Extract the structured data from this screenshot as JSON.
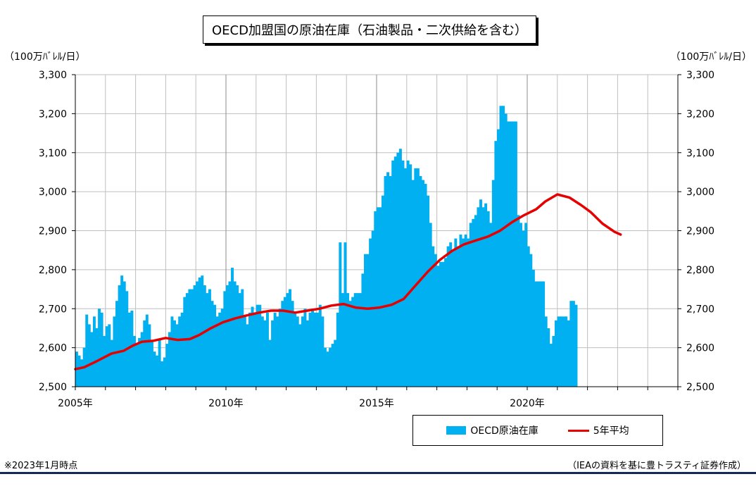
{
  "title": "OECD加盟国の原油在庫（石油製品・二次供給を含む）",
  "unit_left": "（100万ﾊﾞﾚﾙ/日）",
  "unit_right": "（100万ﾊﾞﾚﾙ/日）",
  "note": "※2023年1月時点",
  "source": "（IEAの資料を基に豊トラスティ証券作成）",
  "colors": {
    "bar": "#00B0F0",
    "line": "#E60000",
    "grid": "#BFBFBF",
    "footer": "#14285A"
  },
  "chart_data": {
    "type": "bar",
    "ylim": [
      2500,
      3300
    ],
    "yticks": [
      2500,
      2600,
      2700,
      2800,
      2900,
      3000,
      3100,
      3200,
      3300
    ],
    "ytick_labels": [
      "2,500",
      "2,600",
      "2,700",
      "2,800",
      "2,900",
      "3,000",
      "3,100",
      "3,200",
      "3,300"
    ],
    "xlim": [
      2005.0,
      2025.0
    ],
    "xticks": [
      2005,
      2010,
      2015,
      2020
    ],
    "xtick_labels": [
      "2005年",
      "2010年",
      "2015年",
      "2020年"
    ],
    "grid": true,
    "legend": "bottom-right",
    "series": [
      {
        "name": "OECD原油在庫",
        "kind": "bar",
        "x_start": 2005.0,
        "x_step": 0.0833,
        "values": [
          2590,
          2580,
          2570,
          2600,
          2685,
          2660,
          2640,
          2680,
          2650,
          2700,
          2690,
          2630,
          2655,
          2660,
          2620,
          2680,
          2720,
          2760,
          2785,
          2770,
          2745,
          2690,
          2695,
          2630,
          2610,
          2625,
          2640,
          2670,
          2685,
          2660,
          2620,
          2590,
          2580,
          2620,
          2565,
          2575,
          2610,
          2640,
          2680,
          2670,
          2660,
          2680,
          2690,
          2730,
          2740,
          2750,
          2750,
          2760,
          2770,
          2780,
          2785,
          2760,
          2740,
          2750,
          2720,
          2710,
          2680,
          2690,
          2700,
          2745,
          2760,
          2770,
          2805,
          2770,
          2760,
          2740,
          2750,
          2680,
          2660,
          2690,
          2705,
          2690,
          2710,
          2710,
          2680,
          2670,
          2690,
          2620,
          2670,
          2690,
          2680,
          2700,
          2720,
          2730,
          2740,
          2750,
          2720,
          2690,
          2680,
          2660,
          2680,
          2700,
          2670,
          2690,
          2700,
          2690,
          2690,
          2710,
          2680,
          2600,
          2590,
          2600,
          2610,
          2620,
          2690,
          2870,
          2740,
          2870,
          2740,
          2720,
          2730,
          2740,
          2740,
          2740,
          2790,
          2840,
          2840,
          2880,
          2900,
          2950,
          2960,
          2960,
          2990,
          3040,
          3050,
          3040,
          3080,
          3090,
          3100,
          3110,
          3080,
          3060,
          3080,
          3070,
          3030,
          3060,
          3060,
          3040,
          3030,
          3020,
          2990,
          2920,
          2860,
          2840,
          2810,
          2820,
          2820,
          2830,
          2860,
          2870,
          2850,
          2880,
          2860,
          2890,
          2880,
          2890,
          2880,
          2920,
          2930,
          2940,
          2960,
          2980,
          2960,
          2970,
          2950,
          2920,
          3030,
          3130,
          3160,
          3220,
          3220,
          3200,
          3180,
          3180,
          3180,
          3180,
          2940,
          2920,
          2900,
          2920,
          2860,
          2840,
          2800,
          2770,
          2770,
          2770,
          2770,
          2680,
          2650,
          2610,
          2630,
          2670,
          2680,
          2680,
          2680,
          2680,
          2670,
          2720,
          2720,
          2710
        ]
      },
      {
        "name": "5年平均",
        "kind": "line",
        "points": [
          [
            2005.0,
            2545
          ],
          [
            2005.3,
            2550
          ],
          [
            2005.7,
            2565
          ],
          [
            2006.2,
            2585
          ],
          [
            2006.6,
            2592
          ],
          [
            2006.9,
            2605
          ],
          [
            2007.2,
            2615
          ],
          [
            2007.6,
            2618
          ],
          [
            2008.0,
            2625
          ],
          [
            2008.4,
            2620
          ],
          [
            2008.8,
            2622
          ],
          [
            2009.1,
            2632
          ],
          [
            2009.5,
            2650
          ],
          [
            2009.9,
            2665
          ],
          [
            2010.3,
            2675
          ],
          [
            2010.7,
            2683
          ],
          [
            2011.1,
            2690
          ],
          [
            2011.5,
            2695
          ],
          [
            2011.9,
            2695
          ],
          [
            2012.3,
            2690
          ],
          [
            2012.7,
            2695
          ],
          [
            2013.1,
            2700
          ],
          [
            2013.5,
            2708
          ],
          [
            2013.9,
            2712
          ],
          [
            2014.3,
            2703
          ],
          [
            2014.7,
            2700
          ],
          [
            2015.1,
            2703
          ],
          [
            2015.5,
            2710
          ],
          [
            2015.9,
            2725
          ],
          [
            2016.3,
            2760
          ],
          [
            2016.7,
            2795
          ],
          [
            2017.1,
            2825
          ],
          [
            2017.5,
            2848
          ],
          [
            2017.9,
            2865
          ],
          [
            2018.3,
            2875
          ],
          [
            2018.7,
            2885
          ],
          [
            2019.1,
            2900
          ],
          [
            2019.5,
            2922
          ],
          [
            2019.9,
            2940
          ],
          [
            2020.3,
            2955
          ],
          [
            2020.6,
            2975
          ],
          [
            2021.0,
            2993
          ],
          [
            2021.4,
            2985
          ],
          [
            2021.8,
            2965
          ],
          [
            2022.1,
            2948
          ],
          [
            2022.5,
            2918
          ],
          [
            2022.9,
            2897
          ],
          [
            2023.1,
            2890
          ]
        ]
      }
    ]
  }
}
